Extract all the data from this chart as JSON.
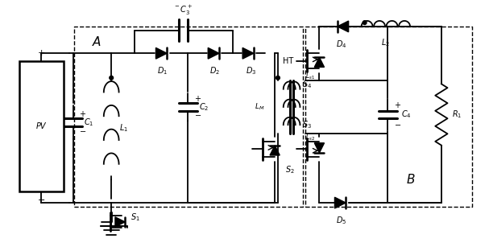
{
  "bg_color": "#ffffff",
  "lw": 1.3,
  "fig_w": 6.07,
  "fig_h": 3.12,
  "dpi": 100
}
